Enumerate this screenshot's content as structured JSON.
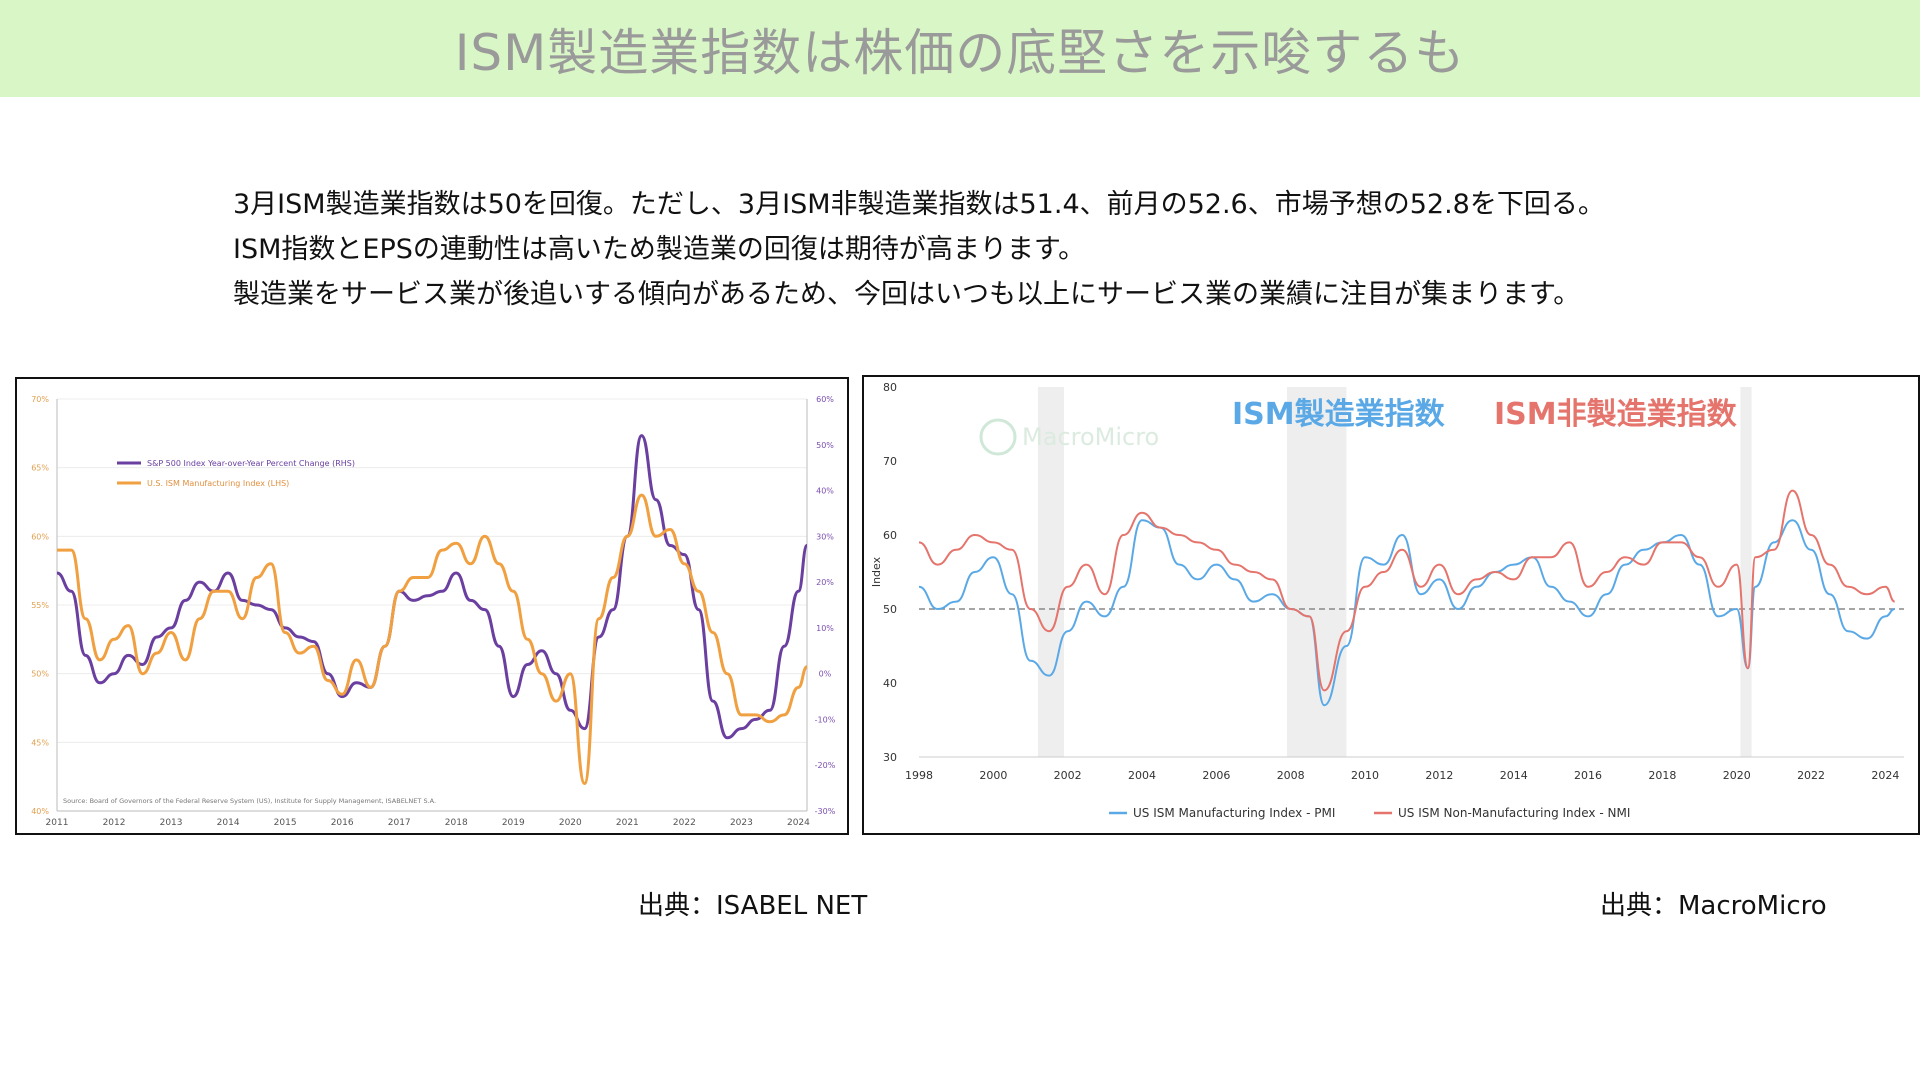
{
  "page": {
    "title": "ISM製造業指数は株価の底堅さを示唆するも",
    "paragraphs": [
      "3月ISM製造業指数は50を回復。ただし、3月ISM非製造業指数は51.4、前月の52.6、市場予想の52.8を下回る。",
      "ISM指数とEPSの連動性は高いため製造業の回復は期待が高まります。",
      "製造業をサービス業が後追いする傾向があるため、今回はいつも以上にサービス業の業績に注目が集まります。"
    ],
    "source_left": "出典：ISABEL NET",
    "source_right": "出典：MacroMicro"
  },
  "chart_data": [
    {
      "type": "line",
      "x_ticks": [
        "2011",
        "2012",
        "2013",
        "2014",
        "2015",
        "2016",
        "2017",
        "2018",
        "2019",
        "2020",
        "2021",
        "2022",
        "2023",
        "2024"
      ],
      "y_left_ticks": [
        "70%",
        "65%",
        "60%",
        "55%",
        "50%",
        "45%",
        "40%"
      ],
      "y_right_ticks": [
        "60%",
        "50%",
        "40%",
        "30%",
        "20%",
        "10%",
        "0%",
        "-10%",
        "-20%",
        "-30%"
      ],
      "ylim_left": [
        40,
        70
      ],
      "ylim_right": [
        -30,
        60
      ],
      "legend": "top-left",
      "source_note": "Source: Board of Governors of the Federal Reserve System (US), Institute for Supply Management, ISABELNET S.A.",
      "series": [
        {
          "name": "S&P 500 Index Year-over-Year Percent Change (RHS)",
          "axis": "right",
          "color": "#6a3fa0",
          "x": [
            2011.0,
            2011.25,
            2011.5,
            2011.75,
            2012.0,
            2012.25,
            2012.5,
            2012.75,
            2013.0,
            2013.25,
            2013.5,
            2013.75,
            2014.0,
            2014.25,
            2014.5,
            2014.75,
            2015.0,
            2015.25,
            2015.5,
            2015.75,
            2016.0,
            2016.25,
            2016.5,
            2016.75,
            2017.0,
            2017.25,
            2017.5,
            2017.75,
            2018.0,
            2018.25,
            2018.5,
            2018.75,
            2019.0,
            2019.25,
            2019.5,
            2019.75,
            2020.0,
            2020.25,
            2020.5,
            2020.75,
            2021.0,
            2021.25,
            2021.5,
            2021.75,
            2022.0,
            2022.25,
            2022.5,
            2022.75,
            2023.0,
            2023.25,
            2023.5,
            2023.75,
            2024.0,
            2024.15
          ],
          "y": [
            22,
            18,
            4,
            -2,
            0,
            4,
            2,
            8,
            10,
            16,
            20,
            18,
            22,
            16,
            15,
            14,
            10,
            8,
            7,
            0,
            -5,
            -2,
            -3,
            6,
            18,
            16,
            17,
            18,
            22,
            16,
            14,
            6,
            -5,
            2,
            5,
            0,
            -8,
            -12,
            8,
            14,
            30,
            52,
            38,
            28,
            26,
            14,
            -6,
            -14,
            -12,
            -10,
            -8,
            6,
            18,
            28
          ]
        },
        {
          "name": "U.S. ISM Manufacturing Index (LHS)",
          "axis": "left",
          "color": "#f0a040",
          "x": [
            2011.0,
            2011.25,
            2011.5,
            2011.75,
            2012.0,
            2012.25,
            2012.5,
            2012.75,
            2013.0,
            2013.25,
            2013.5,
            2013.75,
            2014.0,
            2014.25,
            2014.5,
            2014.75,
            2015.0,
            2015.25,
            2015.5,
            2015.75,
            2016.0,
            2016.25,
            2016.5,
            2016.75,
            2017.0,
            2017.25,
            2017.5,
            2017.75,
            2018.0,
            2018.25,
            2018.5,
            2018.75,
            2019.0,
            2019.25,
            2019.5,
            2019.75,
            2020.0,
            2020.25,
            2020.5,
            2020.75,
            2021.0,
            2021.25,
            2021.5,
            2021.75,
            2022.0,
            2022.25,
            2022.5,
            2022.75,
            2023.0,
            2023.25,
            2023.5,
            2023.75,
            2024.0,
            2024.15
          ],
          "y": [
            59,
            59,
            54,
            51,
            52.5,
            53.5,
            50,
            51.5,
            53,
            51,
            54,
            56,
            56,
            54,
            57,
            58,
            53,
            51.5,
            52,
            49.5,
            48.5,
            51,
            49,
            52,
            56,
            57,
            57,
            59,
            59.5,
            58,
            60,
            58,
            56,
            52.5,
            50,
            48,
            50,
            42,
            54,
            57,
            60,
            63,
            60,
            60.5,
            58,
            56,
            53,
            50,
            47,
            47,
            46.5,
            47,
            49,
            50.5
          ]
        }
      ]
    },
    {
      "type": "line",
      "xlabel": "",
      "ylabel": "Index",
      "x_ticks": [
        1998,
        2000,
        2002,
        2004,
        2006,
        2008,
        2010,
        2012,
        2014,
        2016,
        2018,
        2020,
        2022,
        2024
      ],
      "y_ticks": [
        80,
        70,
        60,
        50,
        40,
        30
      ],
      "ylim": [
        30,
        80
      ],
      "xlim": [
        1998,
        2024.5
      ],
      "reference_line": 50,
      "shaded_periods": [
        [
          2001.2,
          2001.9
        ],
        [
          2007.9,
          2009.5
        ],
        [
          2020.1,
          2020.4
        ]
      ],
      "watermark": "MacroMicro",
      "annotations": [
        "ISM製造業指数",
        "ISM非製造業指数"
      ],
      "annotation_colors": [
        "#5aa9e6",
        "#e4746c"
      ],
      "legend": "bottom",
      "series": [
        {
          "name": "US ISM Manufacturing Index - PMI",
          "color": "#5aa9e6",
          "x": [
            1998.0,
            1998.5,
            1999.0,
            1999.5,
            2000.0,
            2000.5,
            2001.0,
            2001.5,
            2002.0,
            2002.5,
            2003.0,
            2003.5,
            2004.0,
            2004.5,
            2005.0,
            2005.5,
            2006.0,
            2006.5,
            2007.0,
            2007.5,
            2008.0,
            2008.5,
            2008.9,
            2009.5,
            2010.0,
            2010.5,
            2011.0,
            2011.5,
            2012.0,
            2012.5,
            2013.0,
            2013.5,
            2014.0,
            2014.5,
            2015.0,
            2015.5,
            2016.0,
            2016.5,
            2017.0,
            2017.5,
            2018.0,
            2018.5,
            2019.0,
            2019.5,
            2020.0,
            2020.3,
            2020.5,
            2021.0,
            2021.5,
            2022.0,
            2022.5,
            2023.0,
            2023.5,
            2024.0,
            2024.25
          ],
          "y": [
            53,
            50,
            51,
            55,
            57,
            52,
            43,
            41,
            47,
            51,
            49,
            53,
            62,
            61,
            56,
            54,
            56,
            54,
            51,
            52,
            50,
            49,
            37,
            45,
            57,
            56,
            60,
            52,
            54,
            50,
            53,
            55,
            56,
            57,
            53,
            51,
            49,
            52,
            56,
            58,
            59,
            60,
            56,
            49,
            50,
            42,
            53,
            59,
            62,
            58,
            52,
            47,
            46,
            49,
            50
          ]
        },
        {
          "name": "US ISM Non-Manufacturing Index - NMI",
          "color": "#e4746c",
          "x": [
            1998.0,
            1998.5,
            1999.0,
            1999.5,
            2000.0,
            2000.5,
            2001.0,
            2001.5,
            2002.0,
            2002.5,
            2003.0,
            2003.5,
            2004.0,
            2004.5,
            2005.0,
            2005.5,
            2006.0,
            2006.5,
            2007.0,
            2007.5,
            2008.0,
            2008.5,
            2008.9,
            2009.5,
            2010.0,
            2010.5,
            2011.0,
            2011.5,
            2012.0,
            2012.5,
            2013.0,
            2013.5,
            2014.0,
            2014.5,
            2015.0,
            2015.5,
            2016.0,
            2016.5,
            2017.0,
            2017.5,
            2018.0,
            2018.5,
            2019.0,
            2019.5,
            2020.0,
            2020.3,
            2020.5,
            2021.0,
            2021.5,
            2022.0,
            2022.5,
            2023.0,
            2023.5,
            2024.0,
            2024.25
          ],
          "y": [
            59,
            56,
            58,
            60,
            59,
            58,
            50,
            47,
            53,
            56,
            52,
            60,
            63,
            61,
            60,
            59,
            58,
            56,
            55,
            54,
            50,
            49,
            39,
            47,
            53,
            55,
            58,
            53,
            56,
            52,
            54,
            55,
            54,
            57,
            57,
            59,
            53,
            55,
            57,
            56,
            59,
            59,
            57,
            53,
            56,
            42,
            57,
            58,
            66,
            60,
            56,
            53,
            52,
            53,
            51
          ]
        }
      ],
      "legend_entries": [
        "US ISM Manufacturing Index - PMI",
        "US ISM Non-Manufacturing Index - NMI"
      ]
    }
  ]
}
